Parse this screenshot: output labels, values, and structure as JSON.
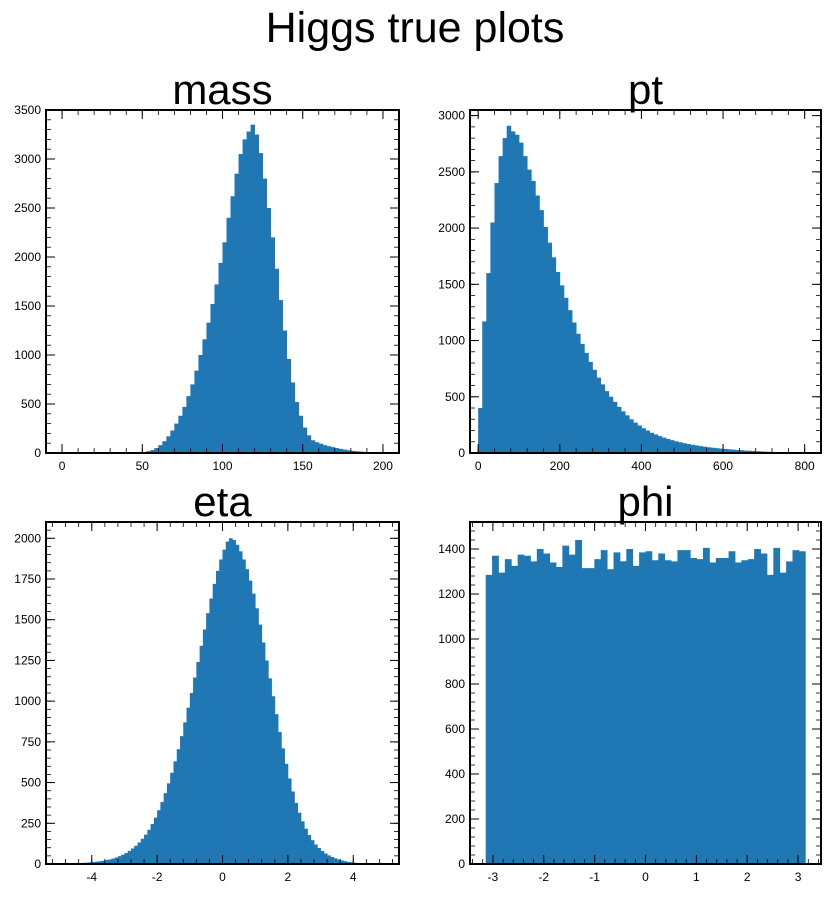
{
  "figure": {
    "title": "Higgs true plots",
    "colors": {
      "bar": "#1f77b4",
      "axis": "#000000"
    }
  },
  "chart_data": [
    {
      "type": "bar",
      "title": "mass",
      "xlabel": "",
      "ylabel": "",
      "xlim": [
        -10,
        210
      ],
      "ylim": [
        0,
        3500
      ],
      "xticks": [
        0,
        50,
        100,
        150,
        200
      ],
      "yticks": [
        0,
        500,
        1000,
        1500,
        2000,
        2500,
        3000,
        3500
      ],
      "grid": false,
      "legend": "none",
      "bin_start": 0,
      "bin_width": 2.5,
      "values": [
        2,
        2,
        2,
        2,
        2,
        2,
        2,
        2,
        2,
        2,
        2,
        2,
        2,
        2,
        2,
        2,
        2,
        3,
        4,
        6,
        10,
        18,
        30,
        50,
        80,
        120,
        170,
        230,
        300,
        380,
        470,
        580,
        700,
        840,
        1000,
        1160,
        1330,
        1520,
        1720,
        1940,
        2150,
        2400,
        2620,
        2850,
        3050,
        3200,
        3280,
        3350,
        3250,
        3060,
        2800,
        2500,
        2200,
        1880,
        1560,
        1250,
        960,
        720,
        520,
        380,
        260,
        180,
        130,
        110,
        95,
        80,
        70,
        60,
        50,
        42,
        35,
        28,
        22,
        18,
        15,
        12,
        10,
        8,
        6,
        5
      ]
    },
    {
      "type": "bar",
      "title": "pt",
      "xlabel": "",
      "ylabel": "",
      "xlim": [
        -20,
        840
      ],
      "ylim": [
        0,
        3050
      ],
      "xticks": [
        0,
        200,
        400,
        600,
        800
      ],
      "yticks": [
        0,
        500,
        1000,
        1500,
        2000,
        2500,
        3000
      ],
      "grid": false,
      "legend": "none",
      "bin_start": 0,
      "bin_width": 10,
      "values": [
        400,
        1170,
        1600,
        2050,
        2400,
        2640,
        2800,
        2910,
        2860,
        2830,
        2760,
        2640,
        2520,
        2420,
        2290,
        2160,
        2010,
        1870,
        1740,
        1610,
        1490,
        1380,
        1270,
        1160,
        1060,
        970,
        890,
        810,
        740,
        670,
        610,
        550,
        500,
        455,
        410,
        370,
        335,
        300,
        270,
        245,
        220,
        200,
        180,
        165,
        150,
        137,
        125,
        114,
        104,
        95,
        87,
        80,
        73,
        67,
        61,
        56,
        51,
        47,
        43,
        39,
        36,
        33,
        30,
        27,
        25,
        22,
        20,
        18,
        16,
        14,
        12,
        10,
        8,
        7,
        6,
        5,
        4,
        3,
        3,
        2
      ]
    },
    {
      "type": "bar",
      "title": "eta",
      "xlabel": "",
      "ylabel": "",
      "xlim": [
        -5.4,
        5.4
      ],
      "ylim": [
        0,
        2100
      ],
      "xticks": [
        -4,
        -2,
        0,
        2,
        4
      ],
      "yticks": [
        0,
        250,
        500,
        750,
        1000,
        1250,
        1500,
        1750,
        2000
      ],
      "grid": false,
      "legend": "none",
      "bin_start": -5.0,
      "bin_width": 0.1,
      "values": [
        2,
        2,
        3,
        3,
        4,
        5,
        6,
        7,
        8,
        10,
        12,
        14,
        17,
        20,
        24,
        28,
        33,
        40,
        48,
        57,
        67,
        80,
        95,
        112,
        132,
        155,
        180,
        210,
        245,
        285,
        330,
        380,
        435,
        495,
        560,
        630,
        705,
        785,
        870,
        960,
        1050,
        1145,
        1240,
        1340,
        1440,
        1540,
        1630,
        1720,
        1800,
        1870,
        1930,
        1980,
        2000,
        1990,
        1960,
        1920,
        1870,
        1810,
        1740,
        1660,
        1570,
        1470,
        1360,
        1250,
        1140,
        1030,
        920,
        810,
        710,
        615,
        525,
        445,
        375,
        315,
        262,
        217,
        178,
        146,
        120,
        98,
        80,
        65,
        53,
        43,
        35,
        28,
        22,
        17,
        13,
        10,
        8,
        6,
        4,
        3,
        2,
        2,
        1,
        1,
        1,
        1
      ]
    },
    {
      "type": "bar",
      "title": "phi",
      "xlabel": "",
      "ylabel": "",
      "xlim": [
        -3.45,
        3.45
      ],
      "ylim": [
        0,
        1520
      ],
      "xticks": [
        -3,
        -2,
        -1,
        0,
        1,
        2,
        3
      ],
      "yticks": [
        0,
        200,
        400,
        600,
        800,
        1000,
        1200,
        1400
      ],
      "grid": false,
      "legend": "none",
      "bin_start": -3.14159,
      "bin_width": 0.12566,
      "values": [
        1285,
        1370,
        1295,
        1355,
        1325,
        1375,
        1370,
        1345,
        1400,
        1380,
        1340,
        1320,
        1415,
        1375,
        1440,
        1315,
        1315,
        1355,
        1395,
        1310,
        1385,
        1345,
        1400,
        1325,
        1385,
        1390,
        1350,
        1380,
        1350,
        1345,
        1395,
        1395,
        1360,
        1355,
        1405,
        1340,
        1360,
        1360,
        1390,
        1340,
        1350,
        1355,
        1400,
        1380,
        1285,
        1405,
        1295,
        1345,
        1395,
        1390
      ]
    }
  ]
}
